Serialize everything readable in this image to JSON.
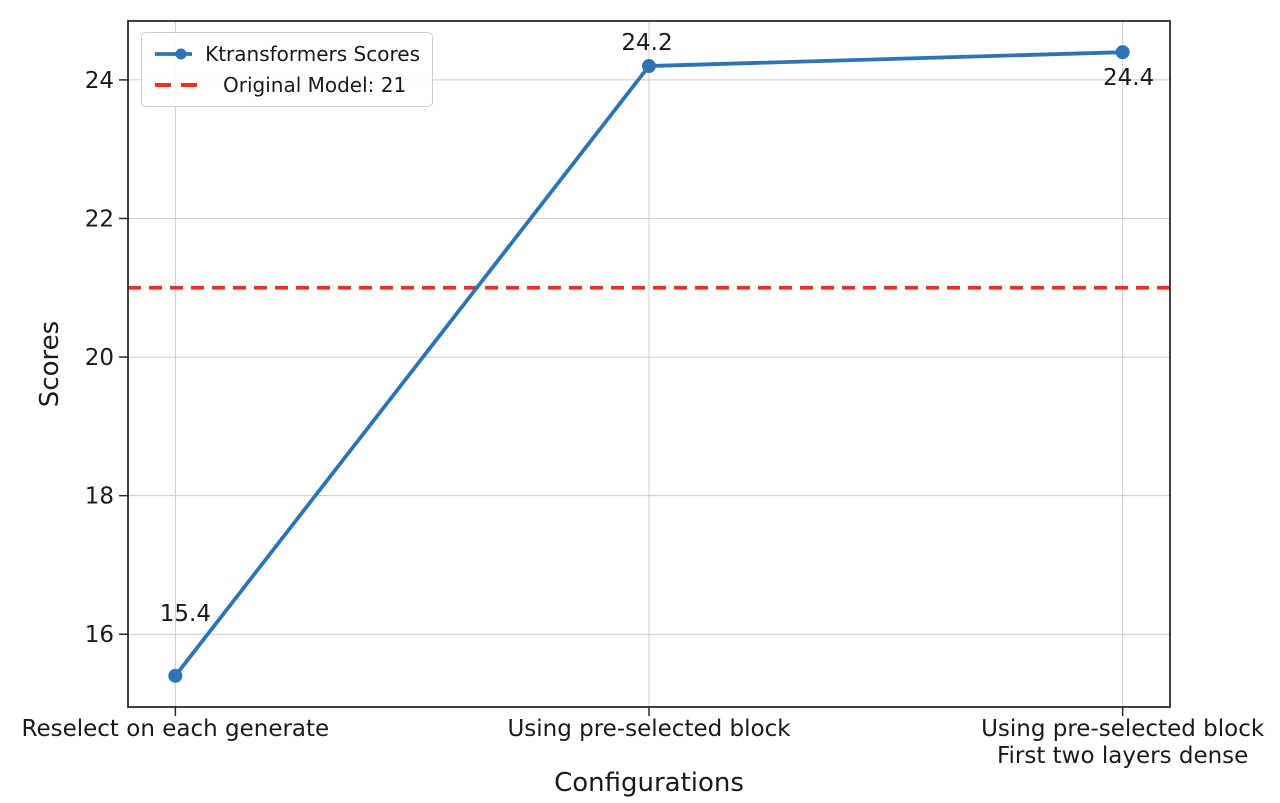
{
  "chart_data": {
    "type": "line",
    "title": "",
    "xlabel": "Configurations",
    "ylabel": "Scores",
    "categories": [
      "Reselect on each generate",
      "Using pre-selected block",
      "Using pre-selected block\nFirst two layers dense"
    ],
    "series": [
      {
        "name": "Ktransformers Scores",
        "values": [
          15.4,
          24.2,
          24.4
        ],
        "color": "#2e74b5",
        "marker": "circle",
        "line_style": "solid"
      }
    ],
    "reference_line": {
      "label": "Original Model: 21",
      "value": 21,
      "color": "#ea3223",
      "line_style": "dashed"
    },
    "annotations": [
      "15.4",
      "24.2",
      "24.4"
    ],
    "yticks": [
      "16",
      "18",
      "20",
      "22",
      "24"
    ],
    "ytick_values": [
      16,
      18,
      20,
      22,
      24
    ],
    "ylim": [
      14.95,
      24.85
    ],
    "xlim": [
      -0.1,
      2.1
    ],
    "grid": true,
    "grid_color": "#cccccc",
    "spine_color": "#2b2b2b",
    "text_color": "#1a1a1a",
    "legend_position": "upper-left"
  }
}
